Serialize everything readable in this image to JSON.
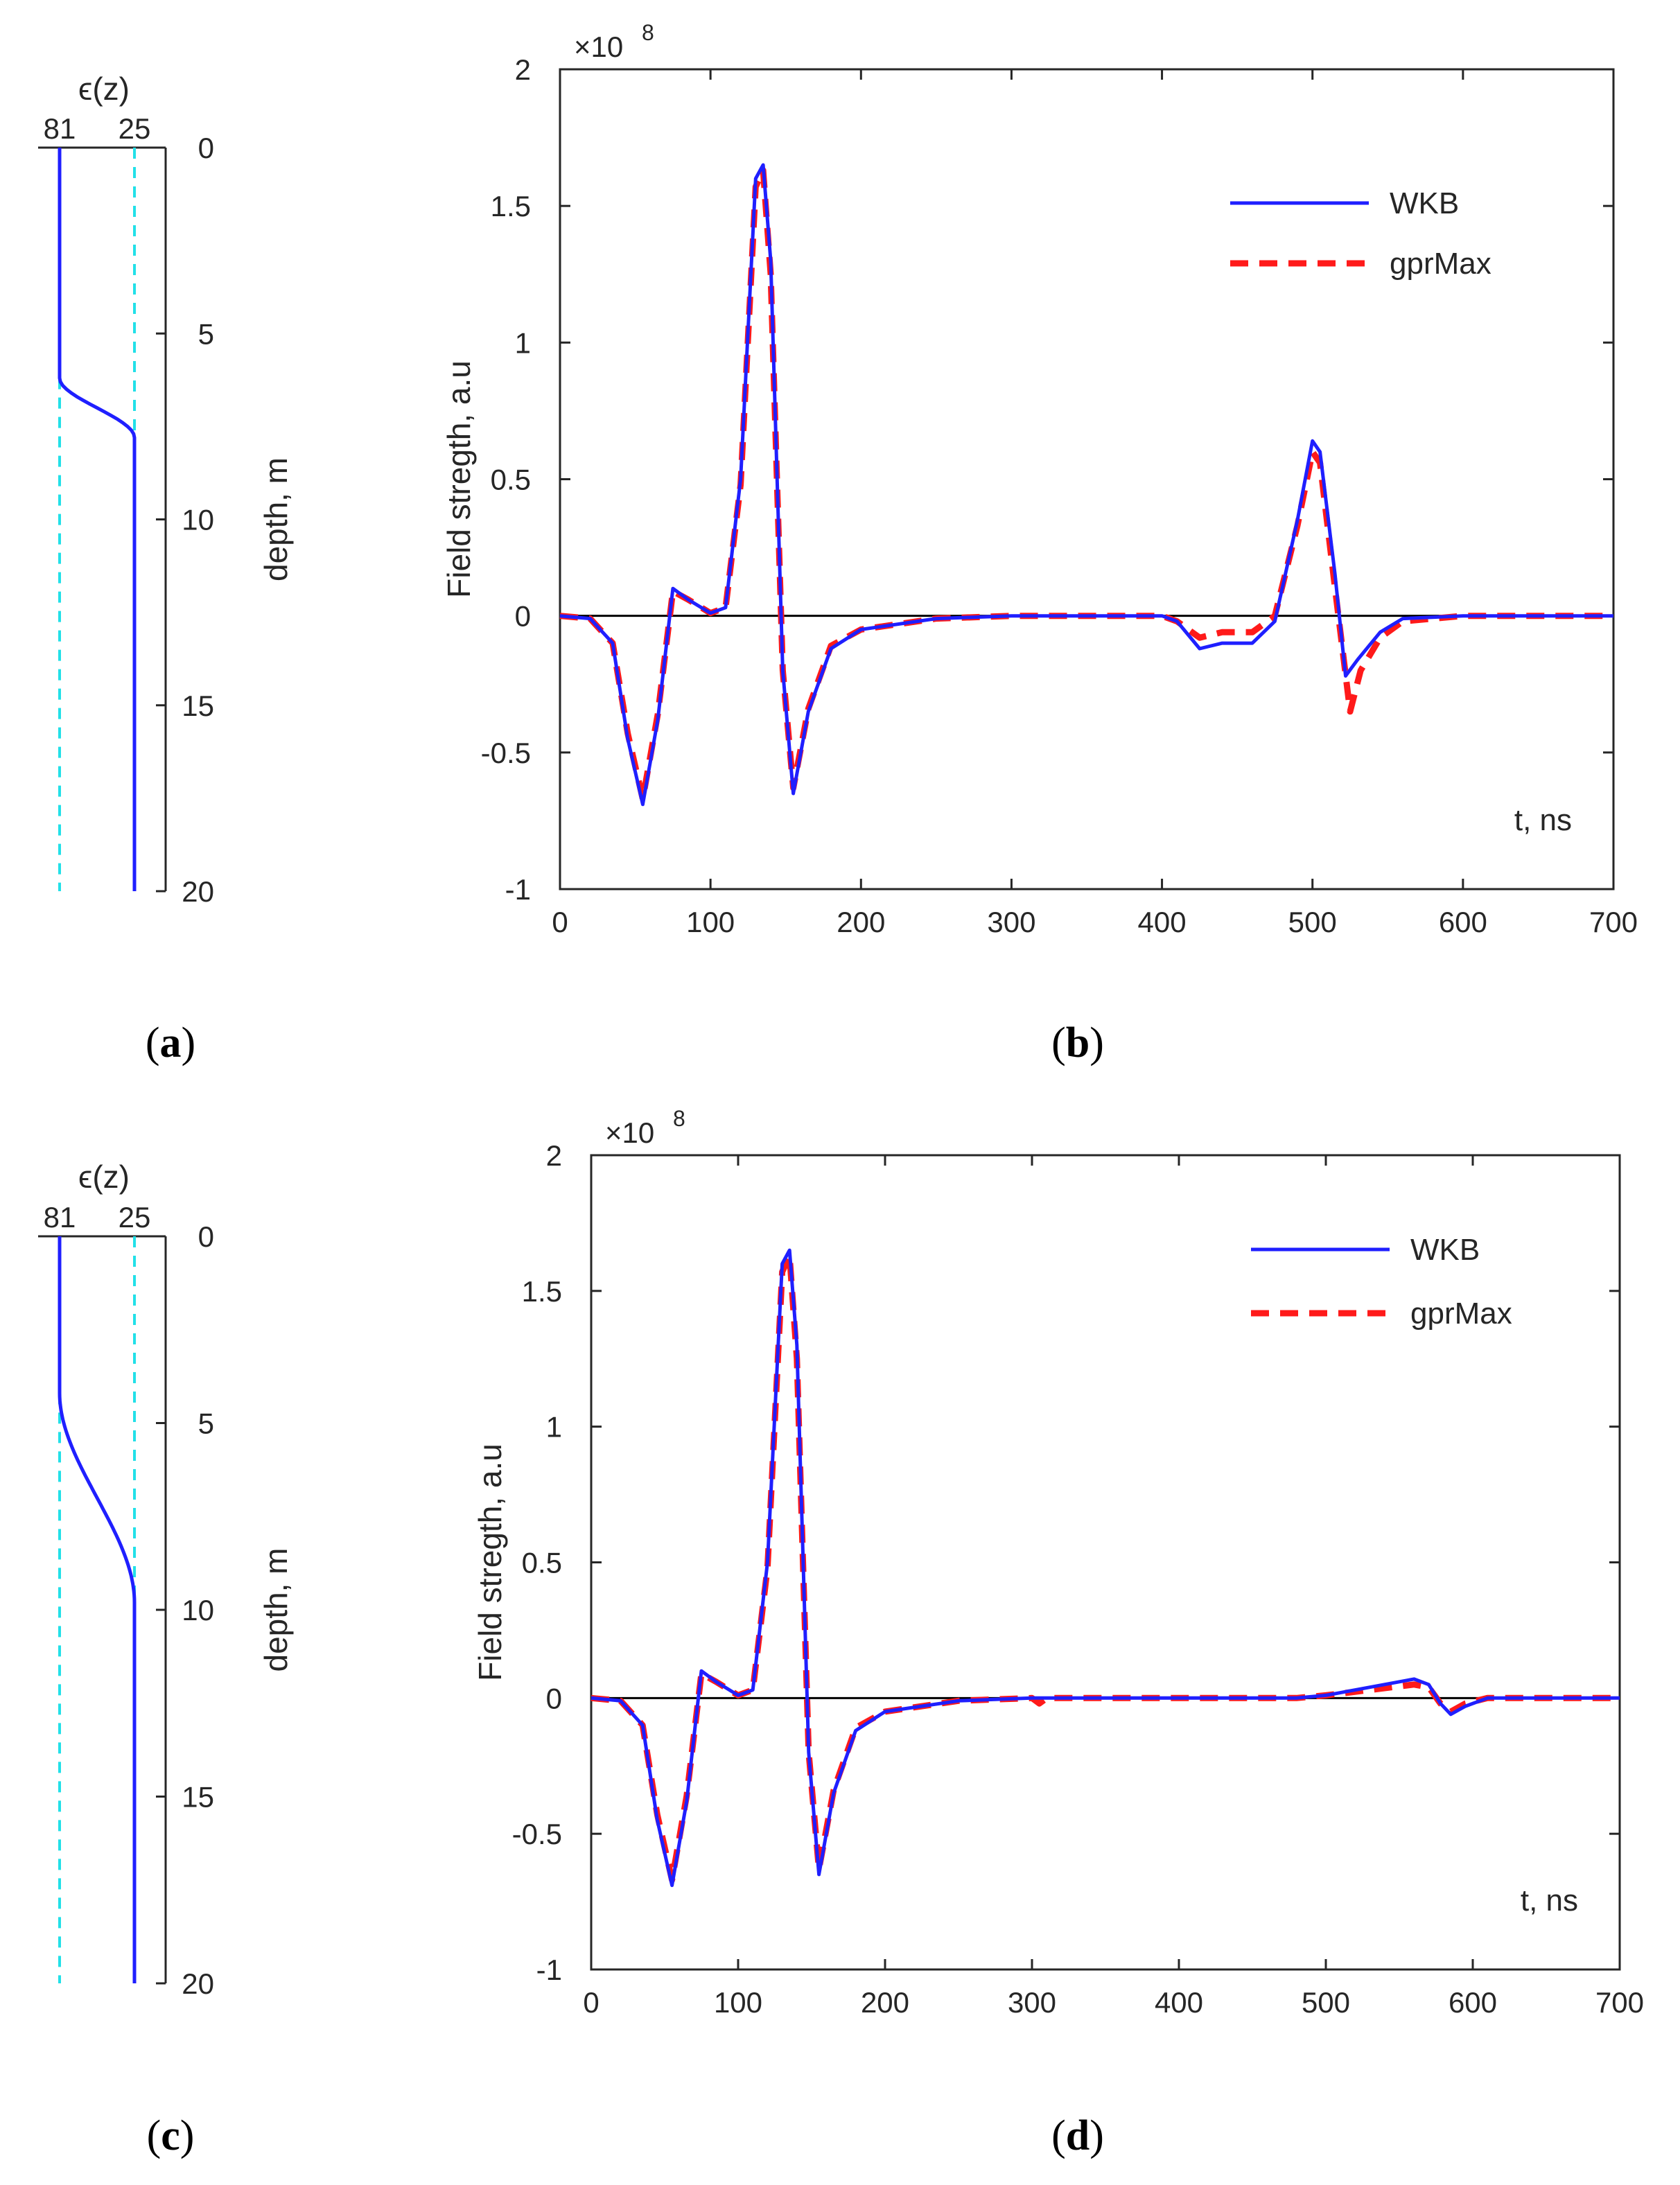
{
  "figure": {
    "panel_labels": [
      {
        "open": "(",
        "letter": "a",
        "close": ")"
      },
      {
        "open": "(",
        "letter": "b",
        "close": ")"
      },
      {
        "open": "(",
        "letter": "c",
        "close": ")"
      },
      {
        "open": "(",
        "letter": "d",
        "close": ")"
      }
    ]
  },
  "colors": {
    "wkb": "#1f1fff",
    "gprmax": "#ff1a1a",
    "profile": "#1f1fff",
    "reference": "#22e0e8",
    "axis": "#262626",
    "zero_line": "#000000"
  },
  "chart_data": [
    {
      "id": "a",
      "type": "line",
      "title": "ϵ(z)",
      "eps_labels": [
        "81",
        "25"
      ],
      "ylabel": "depth, m",
      "ylim": [
        0,
        20
      ],
      "yticks": [
        "0",
        "5",
        "10",
        "15",
        "20"
      ],
      "transition_depth": [
        6.2,
        7.8
      ],
      "eps_values": [
        81,
        25
      ]
    },
    {
      "id": "b",
      "type": "line",
      "title": "",
      "exponent_label": "×10",
      "exponent_power": "8",
      "xlabel": "t, ns",
      "ylabel": "Field stregth, a.u",
      "xlim": [
        0,
        700
      ],
      "ylim": [
        -1,
        2
      ],
      "xticks": [
        "0",
        "100",
        "200",
        "300",
        "400",
        "500",
        "600",
        "700"
      ],
      "yticks": [
        "-1",
        "-0.5",
        "0",
        "0.5",
        "1",
        "1.5",
        "2"
      ],
      "legend": [
        "WKB",
        "gprMax"
      ],
      "legend_position": "top-right",
      "series": [
        {
          "name": "WKB",
          "style": "solid",
          "x": [
            0,
            20,
            35,
            45,
            55,
            65,
            75,
            85,
            100,
            110,
            120,
            130,
            135,
            140,
            148,
            155,
            165,
            180,
            200,
            250,
            300,
            400,
            410,
            425,
            440,
            460,
            475,
            490,
            500,
            505,
            515,
            522,
            530,
            545,
            560,
            600,
            650,
            700
          ],
          "y": [
            0,
            -0.01,
            -0.1,
            -0.45,
            -0.69,
            -0.38,
            0.1,
            0.06,
            0.01,
            0.03,
            0.5,
            1.6,
            1.65,
            1.3,
            -0.2,
            -0.65,
            -0.35,
            -0.12,
            -0.05,
            -0.01,
            0,
            0,
            -0.02,
            -0.12,
            -0.1,
            -0.1,
            -0.02,
            0.35,
            0.64,
            0.6,
            0.15,
            -0.22,
            -0.16,
            -0.06,
            -0.01,
            0,
            0,
            0
          ]
        },
        {
          "name": "gprMax",
          "style": "dashed",
          "x": [
            0,
            20,
            35,
            45,
            55,
            65,
            75,
            85,
            100,
            110,
            120,
            130,
            135,
            140,
            148,
            155,
            165,
            180,
            200,
            250,
            300,
            400,
            410,
            425,
            440,
            460,
            475,
            490,
            500,
            505,
            515,
            525,
            532,
            545,
            560,
            600,
            650,
            700
          ],
          "y": [
            0,
            -0.01,
            -0.1,
            -0.43,
            -0.67,
            -0.36,
            0.09,
            0.06,
            0.01,
            0.03,
            0.48,
            1.57,
            1.63,
            1.25,
            -0.2,
            -0.63,
            -0.34,
            -0.11,
            -0.05,
            -0.01,
            0,
            0,
            -0.02,
            -0.08,
            -0.06,
            -0.06,
            0,
            0.33,
            0.6,
            0.56,
            0.1,
            -0.35,
            -0.2,
            -0.08,
            -0.02,
            0,
            0,
            0
          ]
        }
      ]
    },
    {
      "id": "c",
      "type": "line",
      "title": "ϵ(z)",
      "eps_labels": [
        "81",
        "25"
      ],
      "ylabel": "depth, m",
      "ylim": [
        0,
        20
      ],
      "yticks": [
        "0",
        "5",
        "10",
        "15",
        "20"
      ],
      "transition_depth": [
        4.2,
        9.8
      ],
      "eps_values": [
        81,
        25
      ]
    },
    {
      "id": "d",
      "type": "line",
      "title": "",
      "exponent_label": "×10",
      "exponent_power": "8",
      "xlabel": "t, ns",
      "ylabel": "Field stregth, a.u",
      "xlim": [
        0,
        700
      ],
      "ylim": [
        -1,
        2
      ],
      "xticks": [
        "0",
        "100",
        "200",
        "300",
        "400",
        "500",
        "600",
        "700"
      ],
      "yticks": [
        "-1",
        "-0.5",
        "0",
        "0.5",
        "1",
        "1.5",
        "2"
      ],
      "legend": [
        "WKB",
        "gprMax"
      ],
      "legend_position": "top-right",
      "series": [
        {
          "name": "WKB",
          "style": "solid",
          "x": [
            0,
            20,
            35,
            45,
            55,
            65,
            75,
            85,
            100,
            110,
            120,
            130,
            135,
            140,
            148,
            155,
            165,
            180,
            200,
            250,
            300,
            400,
            480,
            500,
            530,
            560,
            570,
            578,
            585,
            595,
            610,
            650,
            700
          ],
          "y": [
            0,
            -0.01,
            -0.1,
            -0.45,
            -0.69,
            -0.38,
            0.1,
            0.06,
            0.01,
            0.03,
            0.5,
            1.6,
            1.65,
            1.3,
            -0.2,
            -0.65,
            -0.35,
            -0.12,
            -0.05,
            -0.01,
            0,
            0,
            0,
            0.01,
            0.04,
            0.07,
            0.05,
            -0.02,
            -0.06,
            -0.03,
            0,
            0,
            0
          ]
        },
        {
          "name": "gprMax",
          "style": "dashed",
          "x": [
            0,
            20,
            35,
            45,
            55,
            65,
            75,
            85,
            100,
            110,
            120,
            130,
            135,
            140,
            148,
            155,
            165,
            180,
            200,
            250,
            300,
            305,
            310,
            400,
            480,
            500,
            530,
            560,
            570,
            578,
            585,
            595,
            610,
            650,
            700
          ],
          "y": [
            0,
            -0.01,
            -0.1,
            -0.43,
            -0.67,
            -0.36,
            0.09,
            0.06,
            0.01,
            0.03,
            0.48,
            1.57,
            1.63,
            1.25,
            -0.2,
            -0.63,
            -0.34,
            -0.11,
            -0.05,
            -0.01,
            0,
            -0.02,
            0,
            0,
            0,
            0.01,
            0.03,
            0.05,
            0.04,
            -0.02,
            -0.05,
            -0.02,
            0,
            0,
            0
          ]
        }
      ]
    }
  ]
}
